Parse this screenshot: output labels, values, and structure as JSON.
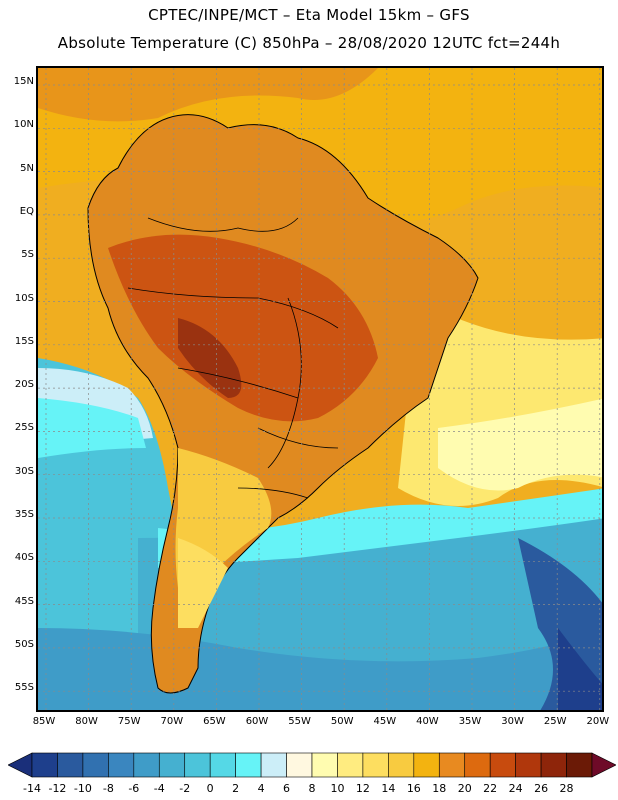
{
  "title_line1": "CPTEC/INPE/MCT –  Eta Model 15km – GFS",
  "title_line2": "Absolute Temperature (C) 850hPa – 28/08/2020 12UTC fct=244h",
  "lat_labels": [
    "15N",
    "10N",
    "5N",
    "EQ",
    "5S",
    "10S",
    "15S",
    "20S",
    "25S",
    "30S",
    "35S",
    "40S",
    "45S",
    "50S",
    "55S"
  ],
  "lon_labels": [
    "85W",
    "80W",
    "75W",
    "70W",
    "65W",
    "60W",
    "55W",
    "50W",
    "45W",
    "40W",
    "35W",
    "30W",
    "25W",
    "20W"
  ],
  "colorbar": {
    "labels": [
      "-14",
      "-12",
      "-10",
      "-8",
      "-6",
      "-4",
      "-2",
      "0",
      "2",
      "4",
      "6",
      "8",
      "10",
      "12",
      "14",
      "16",
      "18",
      "20",
      "22",
      "24",
      "26",
      "28"
    ],
    "colors": [
      "#1e3f8c",
      "#2a5a9e",
      "#3171b0",
      "#3a86bf",
      "#3f9cc8",
      "#45b0d0",
      "#4cc4da",
      "#55d8e6",
      "#66f3f7",
      "#cceef8",
      "#fff8e0",
      "#fffcb0",
      "#ffec80",
      "#fdde60",
      "#f8cb40",
      "#f3b310",
      "#e88a20",
      "#dd6a0f",
      "#c84b0e",
      "#b0370c",
      "#8e250a",
      "#6b1a06"
    ],
    "low_arrow": "#1a2f7a",
    "high_arrow": "#6e0a28"
  },
  "chart_data": {
    "type": "heatmap",
    "title": "Absolute Temperature (C) 850hPa",
    "model": "Eta Model 15km – GFS",
    "date": "28/08/2020 12UTC",
    "forecast": "fct=244h",
    "variable_units": "C",
    "lon_range": [
      "85W",
      "20W"
    ],
    "lat_range": [
      "58S",
      "17N"
    ]
  }
}
